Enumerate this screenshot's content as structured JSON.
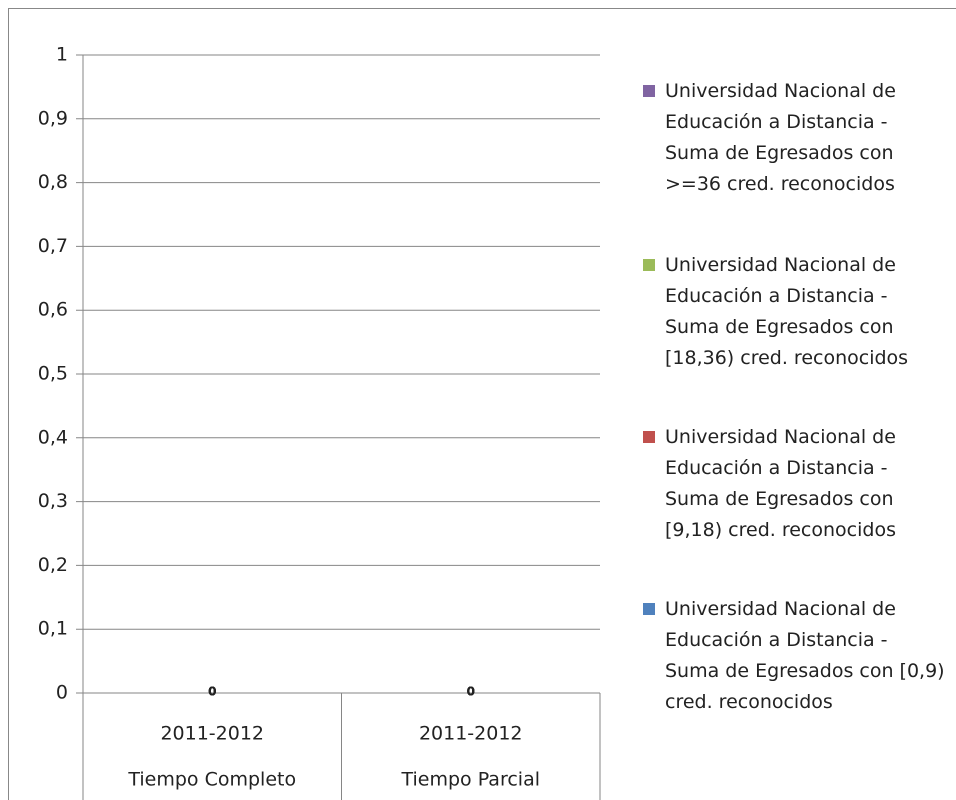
{
  "chart_data": {
    "type": "stacked_bar",
    "categories": [
      "2011-2012",
      "2011-2012"
    ],
    "groups": [
      "Tiempo Completo",
      "Tiempo Parcial"
    ],
    "series": [
      {
        "name": "Universidad Nacional de Educación a Distancia - Suma de Egresados con [0,9) cred. reconocidos",
        "color": "#4f81bd",
        "values": [
          0,
          0
        ]
      },
      {
        "name": "Universidad Nacional de Educación a Distancia - Suma de Egresados con [9,18) cred. reconocidos",
        "color": "#c0504d",
        "values": [
          0,
          0
        ]
      },
      {
        "name": "Universidad Nacional de Educación a Distancia - Suma de Egresados con [18,36) cred. reconocidos",
        "color": "#9bbb59",
        "values": [
          0,
          0
        ]
      },
      {
        "name": "Universidad Nacional de Educación a Distancia - Suma de Egresados con >=36 cred. reconocidos",
        "color": "#8064a2",
        "values": [
          0,
          0
        ]
      }
    ],
    "ylim": [
      0,
      1
    ],
    "yticks": [
      0,
      {
        "value": 0.1,
        "label": "0,1"
      },
      {
        "value": 0.2,
        "label": "0,2"
      },
      {
        "value": 0.3,
        "label": "0,3"
      },
      {
        "value": 0.4,
        "label": "0,4"
      },
      {
        "value": 0.5,
        "label": "0,5"
      },
      {
        "value": 0.6,
        "label": "0,6"
      },
      {
        "value": 0.7,
        "label": "0,7"
      },
      {
        "value": 0.8,
        "label": "0,8"
      },
      {
        "value": 0.9,
        "label": "0,9"
      },
      1
    ],
    "grid": true,
    "legend": "right",
    "data_labels": true
  }
}
